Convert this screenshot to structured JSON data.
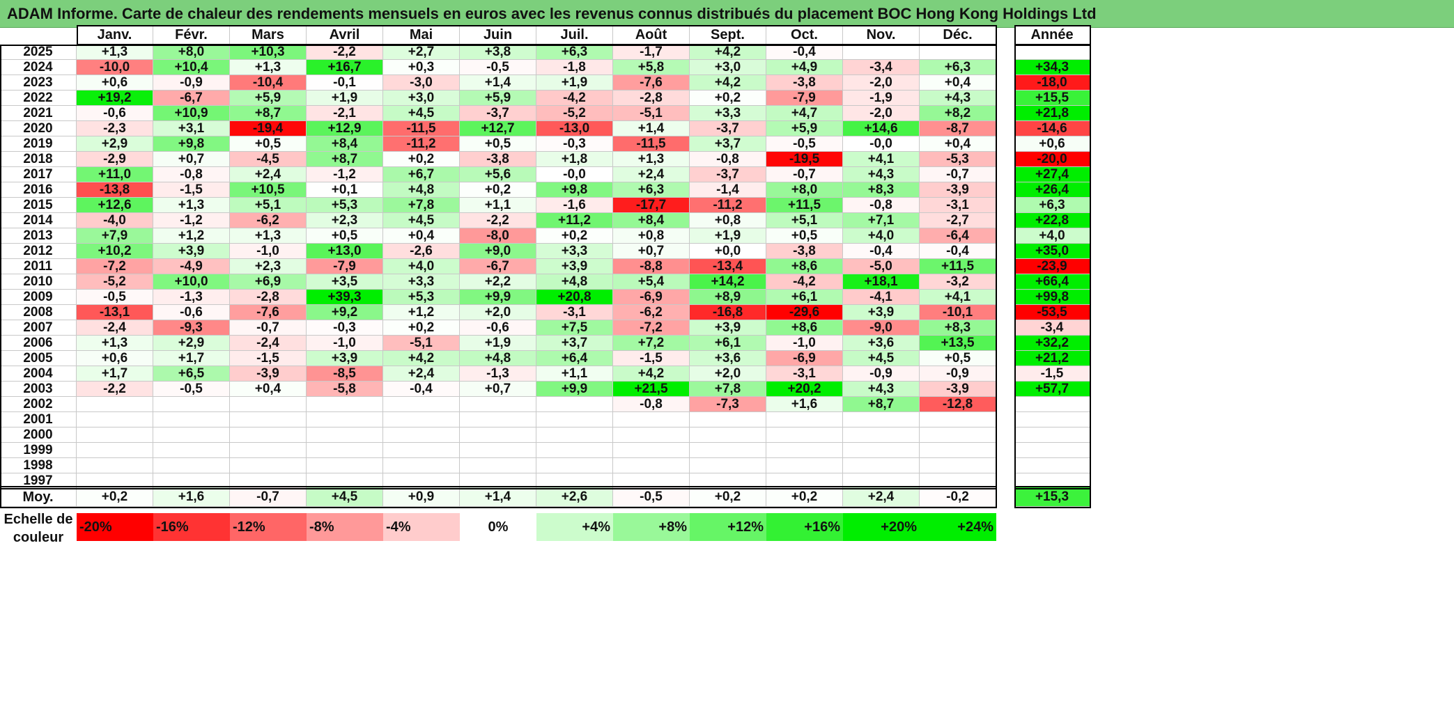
{
  "title": "ADAM Informe. Carte de chaleur des rendements mensuels en euros avec les revenus connus distribués du placement BOC Hong Kong Holdings Ltd",
  "chart_data": {
    "type": "heatmap",
    "months": [
      "Janv.",
      "Févr.",
      "Mars",
      "Avril",
      "Mai",
      "Juin",
      "Juil.",
      "Août",
      "Sept.",
      "Oct.",
      "Nov.",
      "Déc."
    ],
    "annual_header": "Année",
    "rows": [
      {
        "year": "2025",
        "values": [
          "+1,3",
          "+8,0",
          "+10,3",
          "-2,2",
          "+2,7",
          "+3,8",
          "+6,3",
          "-1,7",
          "+4,2",
          "-0,4",
          "",
          ""
        ],
        "annual": ""
      },
      {
        "year": "2024",
        "values": [
          "-10,0",
          "+10,4",
          "+1,3",
          "+16,7",
          "+0,3",
          "-0,5",
          "-1,8",
          "+5,8",
          "+3,0",
          "+4,9",
          "-3,4",
          "+6,3"
        ],
        "annual": "+34,3"
      },
      {
        "year": "2023",
        "values": [
          "+0,6",
          "-0,9",
          "-10,4",
          "-0,1",
          "-3,0",
          "+1,4",
          "+1,9",
          "-7,6",
          "+4,2",
          "-3,8",
          "-2,0",
          "+0,4"
        ],
        "annual": "-18,0"
      },
      {
        "year": "2022",
        "values": [
          "+19,2",
          "-6,7",
          "+5,9",
          "+1,9",
          "+3,0",
          "+5,9",
          "-4,2",
          "-2,8",
          "+0,2",
          "-7,9",
          "-1,9",
          "+4,3"
        ],
        "annual": "+15,5"
      },
      {
        "year": "2021",
        "values": [
          "-0,6",
          "+10,9",
          "+8,7",
          "-2,1",
          "+4,5",
          "-3,7",
          "-5,2",
          "-5,1",
          "+3,3",
          "+4,7",
          "-2,0",
          "+8,2"
        ],
        "annual": "+21,8"
      },
      {
        "year": "2020",
        "values": [
          "-2,3",
          "+3,1",
          "-19,4",
          "+12,9",
          "-11,5",
          "+12,7",
          "-13,0",
          "+1,4",
          "-3,7",
          "+5,9",
          "+14,6",
          "-8,7"
        ],
        "annual": "-14,6"
      },
      {
        "year": "2019",
        "values": [
          "+2,9",
          "+9,8",
          "+0,5",
          "+8,4",
          "-11,2",
          "+0,5",
          "-0,3",
          "-11,5",
          "+3,7",
          "-0,5",
          "-0,0",
          "+0,4"
        ],
        "annual": "+0,6"
      },
      {
        "year": "2018",
        "values": [
          "-2,9",
          "+0,7",
          "-4,5",
          "+8,7",
          "+0,2",
          "-3,8",
          "+1,8",
          "+1,3",
          "-0,8",
          "-19,5",
          "+4,1",
          "-5,3"
        ],
        "annual": "-20,0"
      },
      {
        "year": "2017",
        "values": [
          "+11,0",
          "-0,8",
          "+2,4",
          "-1,2",
          "+6,7",
          "+5,6",
          "-0,0",
          "+2,4",
          "-3,7",
          "-0,7",
          "+4,3",
          "-0,7"
        ],
        "annual": "+27,4"
      },
      {
        "year": "2016",
        "values": [
          "-13,8",
          "-1,5",
          "+10,5",
          "+0,1",
          "+4,8",
          "+0,2",
          "+9,8",
          "+6,3",
          "-1,4",
          "+8,0",
          "+8,3",
          "-3,9"
        ],
        "annual": "+26,4"
      },
      {
        "year": "2015",
        "values": [
          "+12,6",
          "+1,3",
          "+5,1",
          "+5,3",
          "+7,8",
          "+1,1",
          "-1,6",
          "-17,7",
          "-11,2",
          "+11,5",
          "-0,8",
          "-3,1"
        ],
        "annual": "+6,3"
      },
      {
        "year": "2014",
        "values": [
          "-4,0",
          "-1,2",
          "-6,2",
          "+2,3",
          "+4,5",
          "-2,2",
          "+11,2",
          "+8,4",
          "+0,8",
          "+5,1",
          "+7,1",
          "-2,7"
        ],
        "annual": "+22,8"
      },
      {
        "year": "2013",
        "values": [
          "+7,9",
          "+1,2",
          "+1,3",
          "+0,5",
          "+0,4",
          "-8,0",
          "+0,2",
          "+0,8",
          "+1,9",
          "+0,5",
          "+4,0",
          "-6,4"
        ],
        "annual": "+4,0"
      },
      {
        "year": "2012",
        "values": [
          "+10,2",
          "+3,9",
          "-1,0",
          "+13,0",
          "-2,6",
          "+9,0",
          "+3,3",
          "+0,7",
          "+0,0",
          "-3,8",
          "-0,4",
          "-0,4"
        ],
        "annual": "+35,0"
      },
      {
        "year": "2011",
        "values": [
          "-7,2",
          "-4,9",
          "+2,3",
          "-7,9",
          "+4,0",
          "-6,7",
          "+3,9",
          "-8,8",
          "-13,4",
          "+8,6",
          "-5,0",
          "+11,5"
        ],
        "annual": "-23,9"
      },
      {
        "year": "2010",
        "values": [
          "-5,2",
          "+10,0",
          "+6,9",
          "+3,5",
          "+3,3",
          "+2,2",
          "+4,8",
          "+5,4",
          "+14,2",
          "-4,2",
          "+18,1",
          "-3,2"
        ],
        "annual": "+66,4"
      },
      {
        "year": "2009",
        "values": [
          "-0,5",
          "-1,3",
          "-2,8",
          "+39,3",
          "+5,3",
          "+9,9",
          "+20,8",
          "-6,9",
          "+8,9",
          "+6,1",
          "-4,1",
          "+4,1"
        ],
        "annual": "+99,8"
      },
      {
        "year": "2008",
        "values": [
          "-13,1",
          "-0,6",
          "-7,6",
          "+9,2",
          "+1,2",
          "+2,0",
          "-3,1",
          "-6,2",
          "-16,8",
          "-29,6",
          "+3,9",
          "-10,1"
        ],
        "annual": "-53,5"
      },
      {
        "year": "2007",
        "values": [
          "-2,4",
          "-9,3",
          "-0,7",
          "-0,3",
          "+0,2",
          "-0,6",
          "+7,5",
          "-7,2",
          "+3,9",
          "+8,6",
          "-9,0",
          "+8,3"
        ],
        "annual": "-3,4"
      },
      {
        "year": "2006",
        "values": [
          "+1,3",
          "+2,9",
          "-2,4",
          "-1,0",
          "-5,1",
          "+1,9",
          "+3,7",
          "+7,2",
          "+6,1",
          "-1,0",
          "+3,6",
          "+13,5"
        ],
        "annual": "+32,2"
      },
      {
        "year": "2005",
        "values": [
          "+0,6",
          "+1,7",
          "-1,5",
          "+3,9",
          "+4,2",
          "+4,8",
          "+6,4",
          "-1,5",
          "+3,6",
          "-6,9",
          "+4,5",
          "+0,5"
        ],
        "annual": "+21,2"
      },
      {
        "year": "2004",
        "values": [
          "+1,7",
          "+6,5",
          "-3,9",
          "-8,5",
          "+2,4",
          "-1,3",
          "+1,1",
          "+4,2",
          "+2,0",
          "-3,1",
          "-0,9",
          "-0,9"
        ],
        "annual": "-1,5"
      },
      {
        "year": "2003",
        "values": [
          "-2,2",
          "-0,5",
          "+0,4",
          "-5,8",
          "-0,4",
          "+0,7",
          "+9,9",
          "+21,5",
          "+7,8",
          "+20,2",
          "+4,3",
          "-3,9"
        ],
        "annual": "+57,7"
      },
      {
        "year": "2002",
        "values": [
          "",
          "",
          "",
          "",
          "",
          "",
          "",
          "-0,8",
          "-7,3",
          "+1,6",
          "+8,7",
          "-12,8"
        ],
        "annual": ""
      },
      {
        "year": "2001",
        "values": [
          "",
          "",
          "",
          "",
          "",
          "",
          "",
          "",
          "",
          "",
          "",
          ""
        ],
        "annual": ""
      },
      {
        "year": "2000",
        "values": [
          "",
          "",
          "",
          "",
          "",
          "",
          "",
          "",
          "",
          "",
          "",
          ""
        ],
        "annual": ""
      },
      {
        "year": "1999",
        "values": [
          "",
          "",
          "",
          "",
          "",
          "",
          "",
          "",
          "",
          "",
          "",
          ""
        ],
        "annual": ""
      },
      {
        "year": "1998",
        "values": [
          "",
          "",
          "",
          "",
          "",
          "",
          "",
          "",
          "",
          "",
          "",
          ""
        ],
        "annual": ""
      },
      {
        "year": "1997",
        "values": [
          "",
          "",
          "",
          "",
          "",
          "",
          "",
          "",
          "",
          "",
          "",
          ""
        ],
        "annual": ""
      }
    ],
    "average": {
      "label": "Moy.",
      "values": [
        "+0,2",
        "+1,6",
        "-0,7",
        "+4,5",
        "+0,9",
        "+1,4",
        "+2,6",
        "-0,5",
        "+0,2",
        "+0,2",
        "+2,4",
        "-0,2"
      ],
      "annual": "+15,3"
    },
    "color_scale": {
      "label_line1": "Echelle de",
      "label_line2": "couleur",
      "stops": [
        "-20%",
        "-16%",
        "-12%",
        "-8%",
        "-4%",
        "0%",
        "+4%",
        "+8%",
        "+12%",
        "+16%",
        "+20%",
        "+24%"
      ],
      "negative_color": "#ff0000",
      "positive_color": "#00ee00",
      "neutral_color": "#ffffff"
    }
  }
}
